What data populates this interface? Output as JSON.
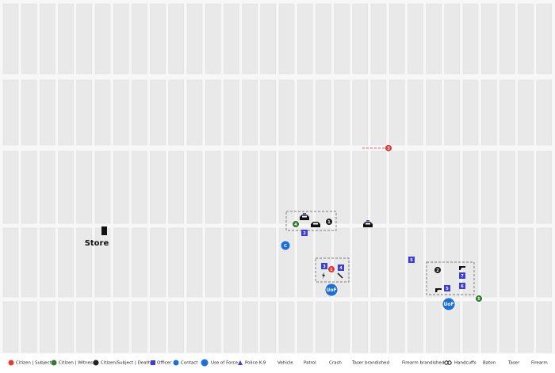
{
  "map": {
    "place_label": "Store",
    "markers": [
      "3",
      "4",
      "1",
      "2",
      "C",
      "3",
      "1",
      "4",
      "UoF",
      "5",
      "2",
      "7",
      "6",
      "5",
      "UoF",
      "5"
    ],
    "legend": [
      "Citizen | Subject",
      "Citizen | Witness",
      "Citizen/Subject | Death",
      "Officer",
      "Contact",
      "Use of Force",
      "Police K-9",
      "Vehicle",
      "Patrol",
      "Crash",
      "Taser brandished",
      "Firearm brandished",
      "Handcuffs",
      "Baton",
      "Taser",
      "Firearm"
    ]
  }
}
